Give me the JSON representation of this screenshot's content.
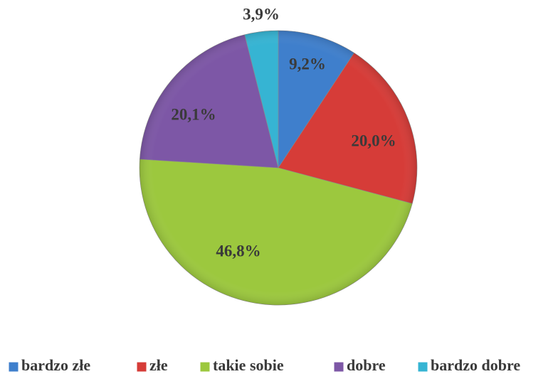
{
  "chart_data": {
    "type": "pie",
    "categories": [
      "bardzo złe",
      "złe",
      "takie sobie",
      "dobre",
      "bardzo dobre"
    ],
    "values": [
      9.2,
      20.0,
      46.8,
      20.1,
      3.9
    ],
    "value_labels": [
      "9,2%",
      "20,0%",
      "46,8%",
      "20,1%",
      "3,9%"
    ],
    "colors": [
      "#3f7fcc",
      "#d63c38",
      "#9cc83e",
      "#7d57a6",
      "#36b4d3"
    ],
    "legend": "bottom"
  }
}
